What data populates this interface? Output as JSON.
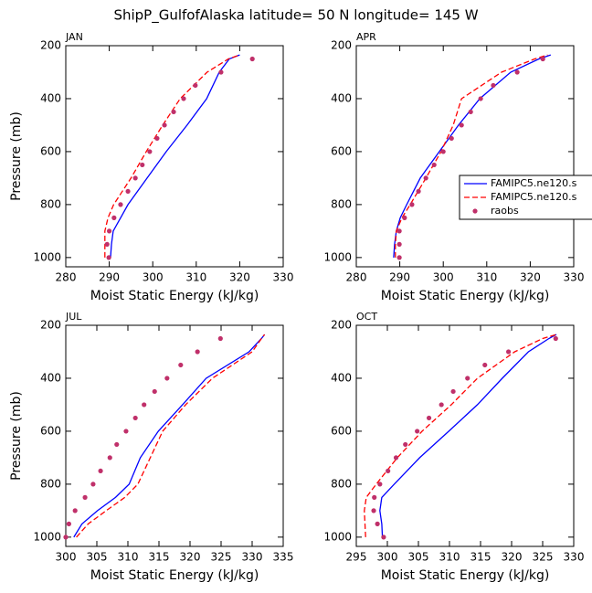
{
  "title": "ShipP_GulfofAlaska  latitude= 50 N longitude= 145 W",
  "chart_data": [
    {
      "type": "line",
      "title": "JAN",
      "xlabel": "Moist Static Energy (kJ/kg)",
      "ylabel": "Pressure (mb)",
      "xlim": [
        280,
        330
      ],
      "xticks": [
        280,
        290,
        300,
        310,
        320,
        330
      ],
      "ylim": [
        1035,
        200
      ],
      "yticks": [
        200,
        400,
        600,
        800,
        1000
      ],
      "series": [
        {
          "color": "#0000ff",
          "style": "solid",
          "y": [
            1000,
            950,
            900,
            850,
            800,
            700,
            600,
            500,
            400,
            300,
            250,
            235
          ],
          "values": [
            290.3,
            290.5,
            290.9,
            292.6,
            294.3,
            298.7,
            303.1,
            307.9,
            312.4,
            315.3,
            317.6,
            320
          ]
        },
        {
          "color": "#ff0000",
          "style": "dashed",
          "y": [
            1000,
            950,
            900,
            850,
            800,
            700,
            600,
            500,
            400,
            300,
            250,
            235
          ],
          "values": [
            289,
            289,
            289,
            289.7,
            291,
            295,
            298.5,
            302.3,
            306.3,
            312.5,
            317.4,
            320
          ]
        },
        {
          "color": "#c0306a",
          "style": "markers",
          "y": [
            1000,
            950,
            900,
            850,
            800,
            750,
            700,
            650,
            600,
            550,
            500,
            450,
            400,
            350,
            300,
            250
          ],
          "values": [
            289.9,
            289.5,
            290,
            291.1,
            292.6,
            294.3,
            296,
            297.6,
            299.3,
            301,
            302.7,
            304.8,
            307.1,
            309.8,
            315.7,
            322.9
          ]
        }
      ]
    },
    {
      "type": "line",
      "title": "APR",
      "xlabel": "Moist Static Energy (kJ/kg)",
      "xlim": [
        280,
        330
      ],
      "xticks": [
        280,
        290,
        300,
        310,
        320,
        330
      ],
      "ylim": [
        1035,
        200
      ],
      "yticks": [
        200,
        400,
        600,
        800,
        1000
      ],
      "legend": "right",
      "series": [
        {
          "name": "FAMIPC5.ne120.s",
          "color": "#0000ff",
          "style": "solid",
          "y": [
            1000,
            950,
            900,
            850,
            800,
            700,
            600,
            500,
            400,
            300,
            250,
            235
          ],
          "values": [
            288.6,
            288.8,
            289.2,
            290.1,
            291.6,
            294.7,
            299.1,
            303.5,
            308.4,
            315.5,
            322,
            324.7
          ]
        },
        {
          "name": "FAMIPC5.ne120.s",
          "color": "#ff0000",
          "style": "dashed",
          "y": [
            1000,
            950,
            900,
            850,
            800,
            700,
            600,
            500,
            400,
            300,
            250,
            235
          ],
          "values": [
            289,
            289,
            289.2,
            290.5,
            292.4,
            296,
            299.5,
            302.3,
            304.2,
            313.4,
            321,
            324
          ]
        },
        {
          "name": "raobs",
          "color": "#c0306a",
          "style": "markers",
          "y": [
            1000,
            950,
            900,
            850,
            800,
            750,
            700,
            650,
            600,
            550,
            500,
            450,
            400,
            350,
            300,
            250
          ],
          "values": [
            289.9,
            289.9,
            289.9,
            291.1,
            292.8,
            294.3,
            296,
            297.9,
            300,
            301.9,
            304.2,
            306.3,
            308.6,
            311.5,
            317,
            322.9
          ]
        }
      ]
    },
    {
      "type": "line",
      "title": "JUL",
      "xlabel": "Moist Static Energy (kJ/kg)",
      "ylabel": "Pressure (mb)",
      "xlim": [
        300,
        335
      ],
      "xticks": [
        300,
        305,
        310,
        315,
        320,
        325,
        330,
        335
      ],
      "ylim": [
        1035,
        200
      ],
      "yticks": [
        200,
        400,
        600,
        800,
        1000
      ],
      "series": [
        {
          "color": "#0000ff",
          "style": "solid",
          "y": [
            1000,
            950,
            900,
            850,
            800,
            700,
            600,
            500,
            400,
            300,
            250,
            235
          ],
          "values": [
            301.3,
            302.6,
            305.1,
            308,
            310.2,
            312,
            314.9,
            318.8,
            322.6,
            329.5,
            331.5,
            332
          ]
        },
        {
          "color": "#ff0000",
          "style": "dashed",
          "y": [
            1000,
            950,
            900,
            850,
            800,
            700,
            600,
            500,
            400,
            300,
            250,
            235
          ],
          "values": [
            301.7,
            303.6,
            306.5,
            309.5,
            311.6,
            313.6,
            315.6,
            319.3,
            323.6,
            330,
            331.5,
            332
          ]
        },
        {
          "color": "#c0306a",
          "style": "markers",
          "y": [
            1000,
            950,
            900,
            850,
            800,
            750,
            700,
            650,
            600,
            550,
            500,
            450,
            400,
            350,
            300,
            250
          ],
          "values": [
            300,
            300.5,
            301.5,
            303.1,
            304.4,
            305.6,
            307.1,
            308.2,
            309.7,
            311.2,
            312.6,
            314.3,
            316.3,
            318.5,
            321.2,
            324.9
          ]
        }
      ]
    },
    {
      "type": "line",
      "title": "OCT",
      "xlabel": "Moist Static Energy (kJ/kg)",
      "xlim": [
        295,
        330
      ],
      "xticks": [
        295,
        300,
        305,
        310,
        315,
        320,
        325,
        330
      ],
      "ylim": [
        1035,
        200
      ],
      "yticks": [
        200,
        400,
        600,
        800,
        1000
      ],
      "series": [
        {
          "color": "#0000ff",
          "style": "solid",
          "y": [
            1000,
            950,
            900,
            850,
            800,
            700,
            600,
            500,
            400,
            300,
            250,
            235
          ],
          "values": [
            299.2,
            299.1,
            298.8,
            299.1,
            301.1,
            305.2,
            309.9,
            314.5,
            318.5,
            322.7,
            326,
            327.2
          ]
        },
        {
          "color": "#ff0000",
          "style": "dashed",
          "y": [
            1000,
            950,
            900,
            850,
            800,
            700,
            600,
            500,
            400,
            300,
            250,
            235
          ],
          "values": [
            296.5,
            296.4,
            296.3,
            296.6,
            298.2,
            301.6,
            305.6,
            310.3,
            314.5,
            320.5,
            325,
            327.2
          ]
        },
        {
          "color": "#c0306a",
          "style": "markers",
          "y": [
            1000,
            950,
            900,
            850,
            800,
            750,
            700,
            650,
            600,
            550,
            500,
            450,
            400,
            350,
            300,
            250
          ],
          "values": [
            299.4,
            298.4,
            297.8,
            297.9,
            298.8,
            300.1,
            301.4,
            302.9,
            304.8,
            306.7,
            308.7,
            310.6,
            312.9,
            315.7,
            319.5,
            327.1
          ]
        }
      ]
    }
  ]
}
